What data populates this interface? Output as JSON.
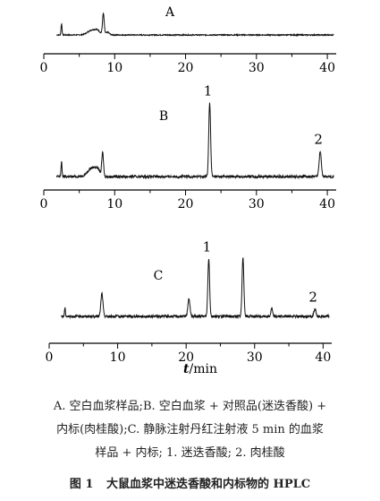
{
  "chart_data": {
    "type": "line",
    "title": "",
    "xlabel_italic": "t",
    "xlabel_unit": "/min",
    "xlim": [
      0,
      41
    ],
    "x_ticks": [
      0,
      10,
      20,
      30,
      40
    ],
    "x_tick_labels": [
      "0",
      "10",
      "20",
      "30",
      "40"
    ],
    "panels": [
      {
        "label": "A",
        "baseline_noise": 0.02,
        "peaks": [
          {
            "x": 2.5,
            "height": 0.42,
            "width": 0.07
          },
          {
            "x": 6.8,
            "height": 0.18,
            "width": 0.6
          },
          {
            "x": 7.6,
            "height": 0.12,
            "width": 0.35
          },
          {
            "x": 8.4,
            "height": 0.78,
            "width": 0.12
          },
          {
            "x": 9.0,
            "height": 0.1,
            "width": 0.25
          }
        ],
        "peak_labels": []
      },
      {
        "label": "B",
        "baseline_noise": 0.015,
        "peaks": [
          {
            "x": 2.5,
            "height": 0.17,
            "width": 0.07
          },
          {
            "x": 6.8,
            "height": 0.1,
            "width": 0.6
          },
          {
            "x": 7.6,
            "height": 0.06,
            "width": 0.35
          },
          {
            "x": 8.3,
            "height": 0.27,
            "width": 0.12
          },
          {
            "x": 23.4,
            "height": 0.87,
            "width": 0.13
          },
          {
            "x": 39.0,
            "height": 0.3,
            "width": 0.15
          }
        ],
        "peak_labels": [
          {
            "text": "1",
            "x": 23.4
          },
          {
            "text": "2",
            "x": 39.0
          }
        ]
      },
      {
        "label": "C",
        "baseline_noise": 0.015,
        "peaks": [
          {
            "x": 2.3,
            "height": 0.1,
            "width": 0.07
          },
          {
            "x": 7.7,
            "height": 0.28,
            "width": 0.15
          },
          {
            "x": 20.4,
            "height": 0.22,
            "width": 0.15
          },
          {
            "x": 23.3,
            "height": 0.7,
            "width": 0.13
          },
          {
            "x": 28.3,
            "height": 0.72,
            "width": 0.13
          },
          {
            "x": 32.5,
            "height": 0.1,
            "width": 0.12
          },
          {
            "x": 38.8,
            "height": 0.09,
            "width": 0.15
          }
        ],
        "peak_labels": [
          {
            "text": "1",
            "x": 23.3
          },
          {
            "text": "2",
            "x": 38.8
          }
        ]
      }
    ]
  },
  "caption": {
    "note_lines": [
      "A. 空白血浆样品;B. 空白血浆 + 对照品(迷迭香酸) +",
      "内标(肉桂酸);C. 静脉注射丹红注射液 5 min 的血浆",
      "样品 + 内标; 1. 迷迭香酸; 2. 肉桂酸"
    ],
    "figure_number": "图 1",
    "figure_title": "大鼠血浆中迷迭香酸和内标物的 HPLC"
  }
}
